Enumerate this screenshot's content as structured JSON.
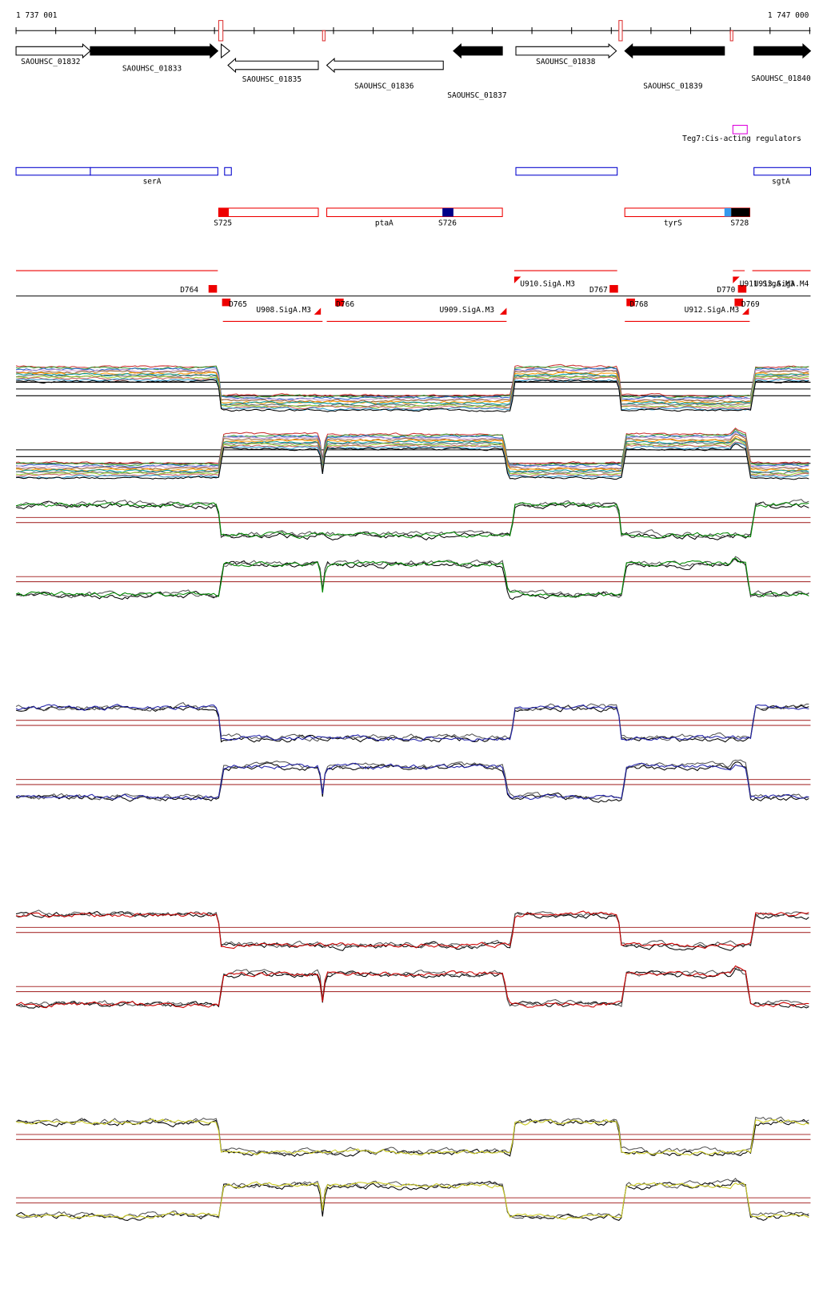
{
  "header": {
    "start": "1 737 001",
    "end": "1 747 000"
  },
  "genes": [
    "SAOUHSC_01832",
    "SAOUHSC_01833",
    "SAOUHSC_01835",
    "SAOUHSC_01836",
    "SAOUHSC_01837",
    "SAOUHSC_01838",
    "SAOUHSC_01839",
    "SAOUHSC_01840"
  ],
  "regulator": "Teg7:Cis-acting regulators",
  "operons": [
    "serA",
    "sgtA"
  ],
  "features": [
    "S725",
    "ptaA",
    "S726",
    "tyrS",
    "S728"
  ],
  "segments": [
    "D764",
    "D765",
    "U908.SigA.M3",
    "D766",
    "U909.SigA.M3",
    "U910.SigA.M3",
    "D767",
    "D768",
    "U912.SigA.M3",
    "D770",
    "D769",
    "U911.SigA.M3",
    "U913.SigA.M4"
  ]
}
